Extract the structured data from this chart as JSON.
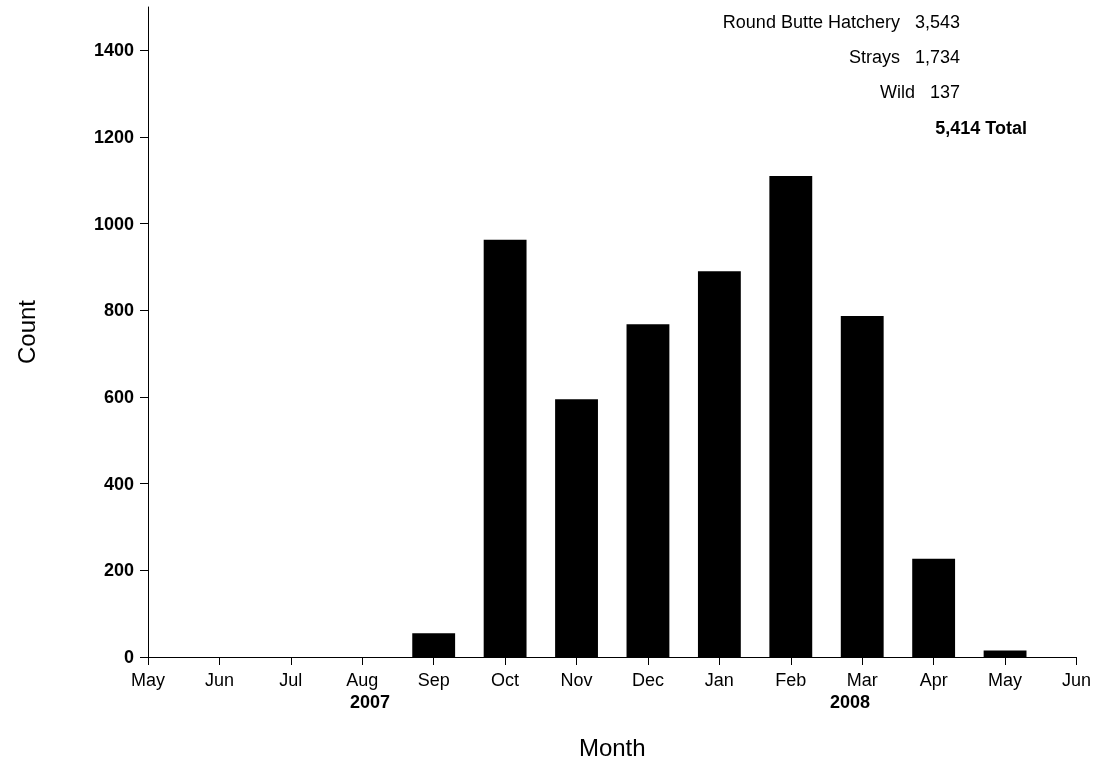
{
  "chart_data": {
    "type": "bar",
    "xlabel": "Month",
    "ylabel": "Count",
    "categories": [
      "May",
      "Jun",
      "Jul",
      "Aug",
      "Sep",
      "Oct",
      "Nov",
      "Dec",
      "Jan",
      "Feb",
      "Mar",
      "Apr",
      "May",
      "Jun"
    ],
    "values": [
      0,
      0,
      0,
      0,
      55,
      963,
      595,
      768,
      890,
      1110,
      787,
      227,
      15,
      null
    ],
    "color": "#000000",
    "ylim": [
      0,
      1500
    ],
    "yticks": [
      0,
      200,
      400,
      600,
      800,
      1000,
      1200,
      1400
    ],
    "grid": false,
    "annotations": [
      "Round Butte Hatchery   3,543",
      "Strays   1,734",
      "Wild   137",
      "5,414 Total",
      "2007",
      "2008"
    ]
  }
}
